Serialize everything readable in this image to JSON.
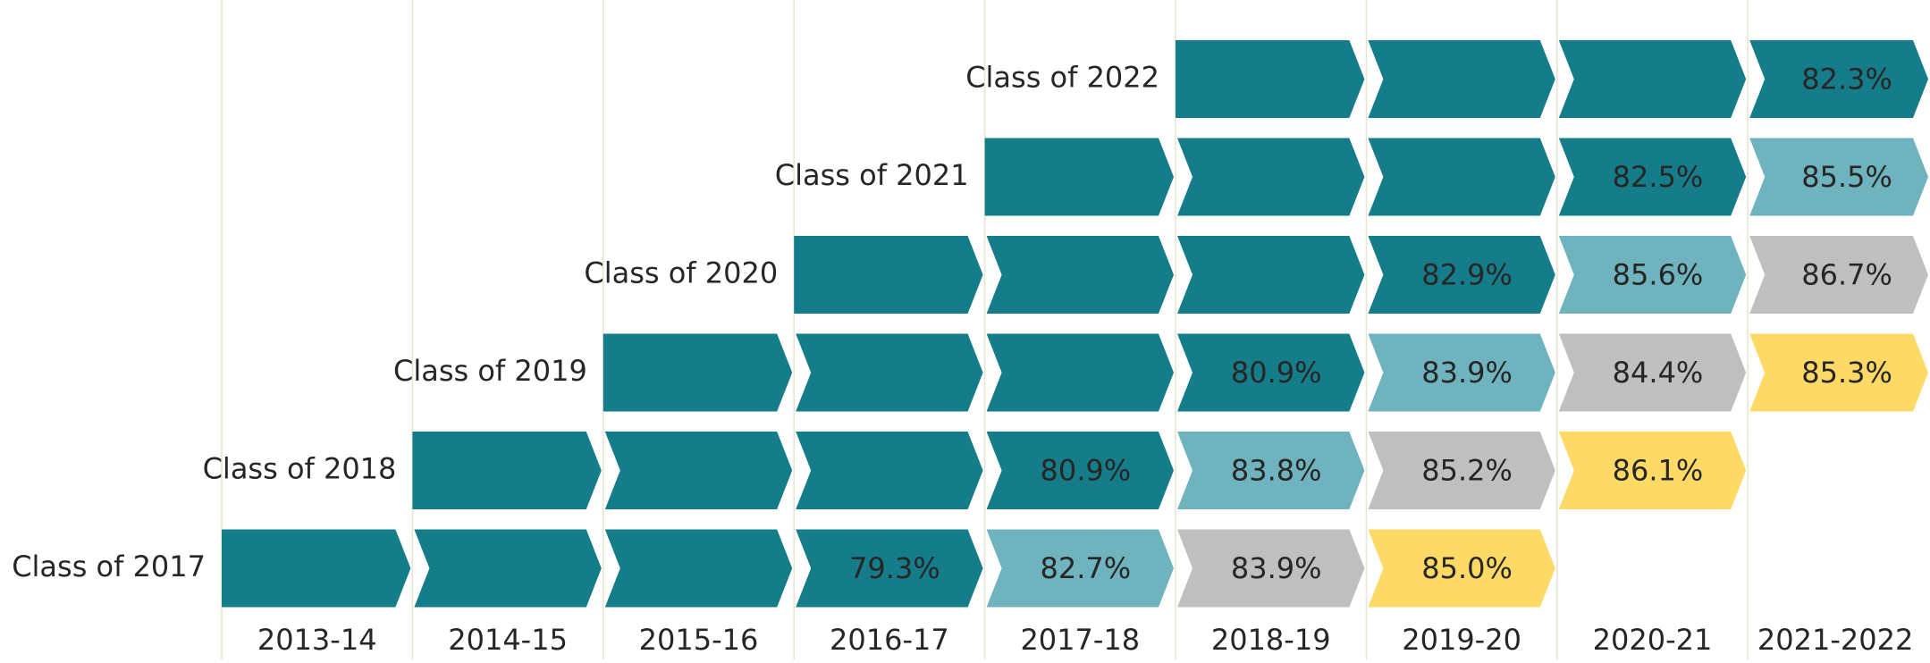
{
  "chart_data": {
    "type": "cohort",
    "categories": [
      "2013-14",
      "2014-15",
      "2015-16",
      "2016-17",
      "2017-18",
      "2018-19",
      "2019-20",
      "2020-21",
      "2021-2022"
    ],
    "series": [
      {
        "name": "Class of 2017",
        "colors": [
          "#157d8a",
          "#157d8a",
          "#157d8a",
          "#157d8a",
          "#6fb3bf",
          "#bfbfbf",
          "#ffd966",
          null,
          null
        ],
        "values": [
          null,
          null,
          null,
          79.3,
          82.7,
          83.9,
          85.0,
          null,
          null
        ],
        "value_labels": [
          null,
          null,
          null,
          "79.3%",
          "82.7%",
          "83.9%",
          "85.0%",
          null,
          null
        ]
      },
      {
        "name": "Class of 2018",
        "colors": [
          null,
          "#157d8a",
          "#157d8a",
          "#157d8a",
          "#157d8a",
          "#6fb3bf",
          "#bfbfbf",
          "#ffd966",
          null
        ],
        "values": [
          null,
          null,
          null,
          null,
          80.9,
          83.8,
          85.2,
          86.1,
          null
        ],
        "value_labels": [
          null,
          null,
          null,
          null,
          "80.9%",
          "83.8%",
          "85.2%",
          "86.1%",
          null
        ]
      },
      {
        "name": "Class of 2019",
        "colors": [
          null,
          null,
          "#157d8a",
          "#157d8a",
          "#157d8a",
          "#157d8a",
          "#6fb3bf",
          "#bfbfbf",
          "#ffd966"
        ],
        "values": [
          null,
          null,
          null,
          null,
          null,
          80.9,
          83.9,
          84.4,
          85.3
        ],
        "value_labels": [
          null,
          null,
          null,
          null,
          null,
          "80.9%",
          "83.9%",
          "84.4%",
          "85.3%"
        ]
      },
      {
        "name": "Class of 2020",
        "colors": [
          null,
          null,
          null,
          "#157d8a",
          "#157d8a",
          "#157d8a",
          "#157d8a",
          "#6fb3bf",
          "#bfbfbf"
        ],
        "values": [
          null,
          null,
          null,
          null,
          null,
          null,
          82.9,
          85.6,
          86.7
        ],
        "value_labels": [
          null,
          null,
          null,
          null,
          null,
          null,
          "82.9%",
          "85.6%",
          "86.7%"
        ]
      },
      {
        "name": "Class of 2021",
        "colors": [
          null,
          null,
          null,
          null,
          "#157d8a",
          "#157d8a",
          "#157d8a",
          "#157d8a",
          "#6fb3bf"
        ],
        "values": [
          null,
          null,
          null,
          null,
          null,
          null,
          null,
          82.5,
          85.5
        ],
        "value_labels": [
          null,
          null,
          null,
          null,
          null,
          null,
          null,
          "82.5%",
          "85.5%"
        ]
      },
      {
        "name": "Class of 2022",
        "colors": [
          null,
          null,
          null,
          null,
          null,
          "#157d8a",
          "#157d8a",
          "#157d8a",
          "#157d8a"
        ],
        "values": [
          null,
          null,
          null,
          null,
          null,
          null,
          null,
          null,
          82.3
        ],
        "value_labels": [
          null,
          null,
          null,
          null,
          null,
          null,
          null,
          null,
          "82.3%"
        ]
      }
    ]
  }
}
